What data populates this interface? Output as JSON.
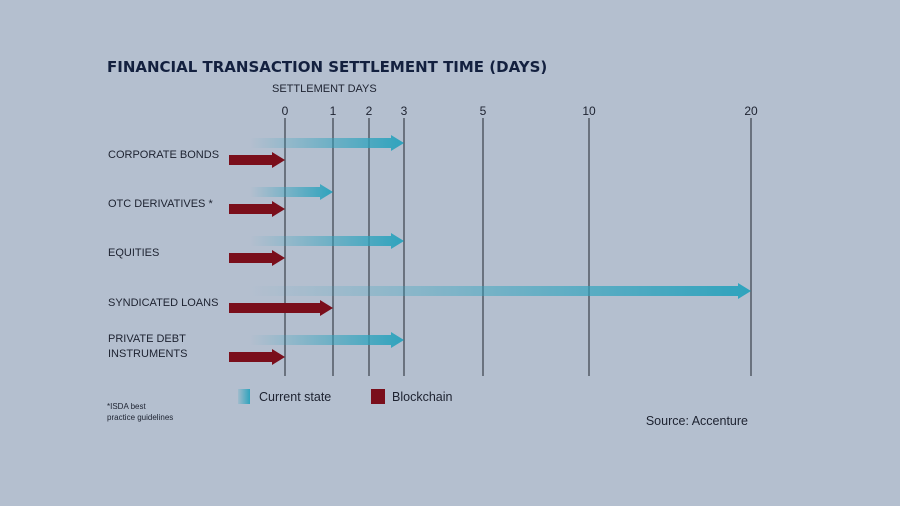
{
  "chart_data": {
    "type": "bar",
    "title": "FINANCIAL TRANSACTION SETTLEMENT TIME (DAYS)",
    "xlabel": "SETTLEMENT DAYS",
    "xticks": [
      0,
      1,
      2,
      3,
      5,
      10,
      20
    ],
    "xlim": [
      0,
      20
    ],
    "orientation": "horizontal",
    "grid": true,
    "categories": [
      [
        "CORPORATE BONDS"
      ],
      [
        "OTC DERIVATIVES *"
      ],
      [
        "EQUITIES"
      ],
      [
        "SYNDICATED LOANS"
      ],
      [
        "PRIVATE DEBT",
        "INSTRUMENTS"
      ]
    ],
    "series": [
      {
        "name": "Current state",
        "color": "#2fa3bd",
        "values": [
          3,
          1,
          3,
          20,
          3
        ]
      },
      {
        "name": "Blockchain",
        "color": "#7a0e1b",
        "values": [
          0,
          0,
          0,
          1,
          0
        ]
      }
    ],
    "legend_position": "bottom",
    "footnote": [
      "*ISDA best",
      "practice guidelines"
    ],
    "source": "Source: Accenture"
  }
}
